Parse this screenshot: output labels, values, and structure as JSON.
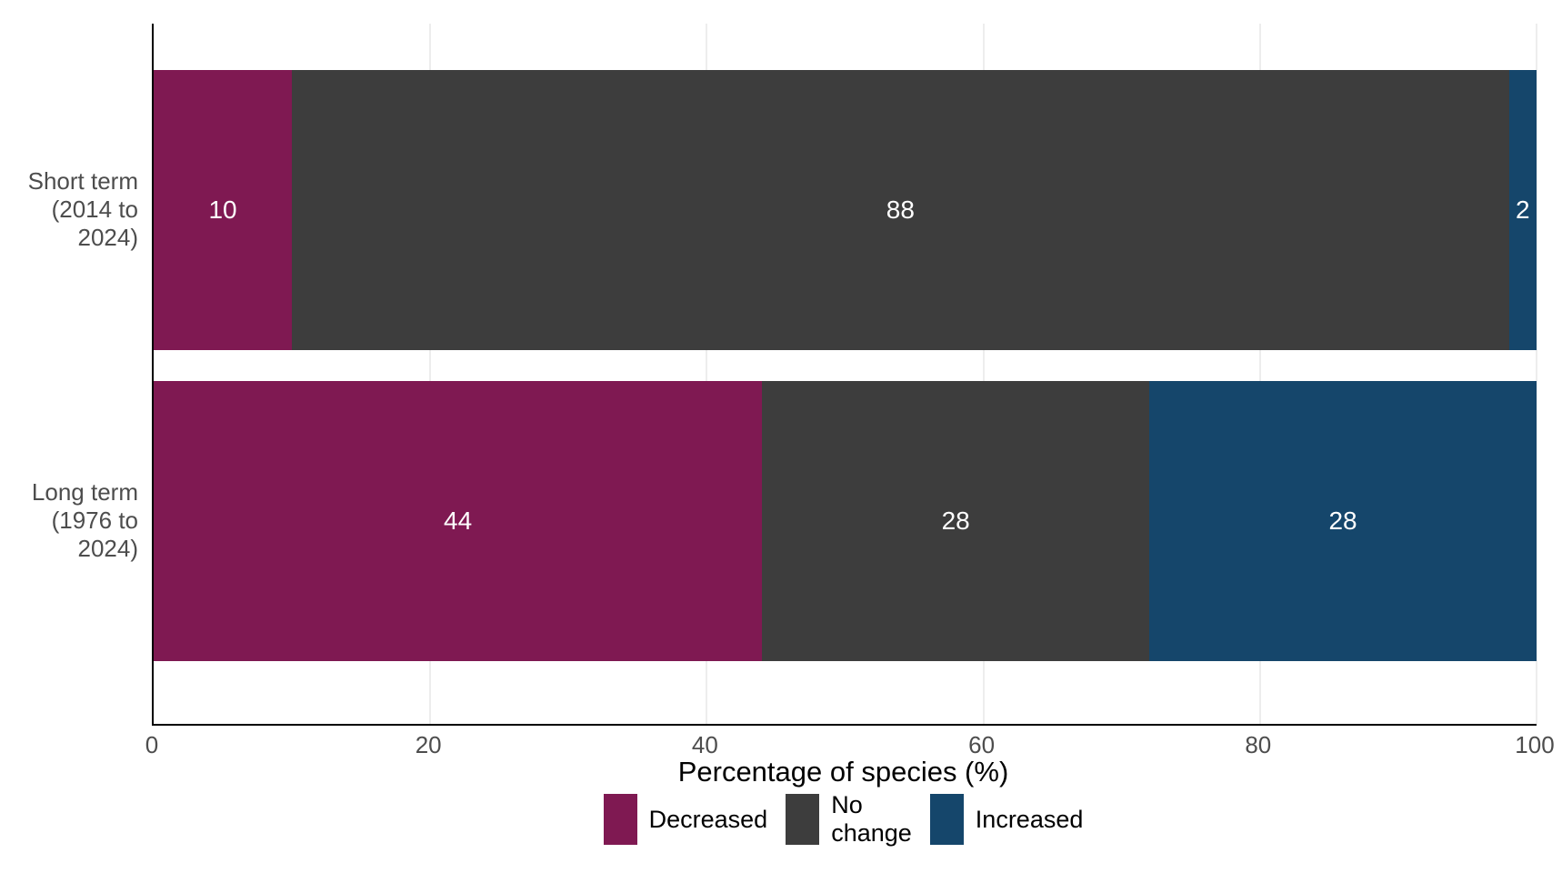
{
  "chart_data": {
    "type": "bar",
    "orientation": "horizontal",
    "stacked": true,
    "title": "",
    "xlabel": "Percentage of species (%)",
    "ylabel": "",
    "xlim": [
      0,
      100
    ],
    "xticks": [
      0,
      20,
      40,
      60,
      80,
      100
    ],
    "grid": "vertical-major",
    "legend_position": "bottom",
    "categories": [
      "Short term\n(2014 to\n2024)",
      "Long term\n(1976 to\n2024)"
    ],
    "series": [
      {
        "name": "Decreased",
        "color": "#7F1952",
        "values": [
          10,
          44
        ]
      },
      {
        "name": "No change",
        "color": "#3D3D3D",
        "values": [
          88,
          28
        ]
      },
      {
        "name": "Increased",
        "color": "#15466B",
        "values": [
          2,
          28
        ]
      }
    ]
  },
  "legend": {
    "items": [
      {
        "label": "Decreased"
      },
      {
        "label": "No\nchange"
      },
      {
        "label": "Increased"
      }
    ]
  },
  "colors": {
    "background": "#FFFFFF",
    "axis_line": "#000000",
    "axis_text": "#4D4D4D",
    "axis_title_text": "#000000",
    "gridline": "#EDEDED",
    "value_label_text": "#FFFFFF"
  }
}
